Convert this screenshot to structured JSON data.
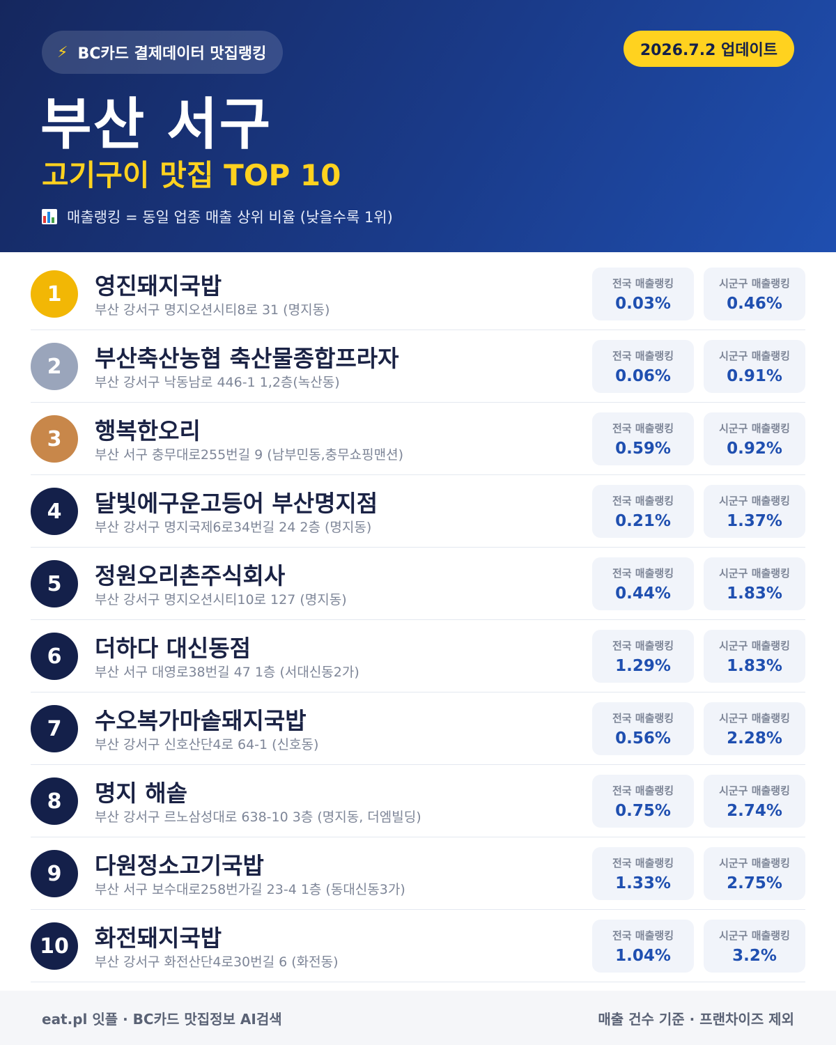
{
  "header": {
    "brand": "BC카드 결제데이터 맛집랭킹",
    "update": "2026.7.2 업데이트",
    "title": "부산 서구",
    "subtitle": "고기구이 맛집 TOP 10",
    "legend": "매출랭킹 = 동일 업종 매출 상위 비율 (낮을수록 1위)",
    "brand_icon": "lightning-bolt-icon",
    "legend_icon": "bar-chart-icon"
  },
  "labels": {
    "national": "전국 매출랭킹",
    "district": "시군구 매출랭킹"
  },
  "colors": {
    "gold": "#F2B705",
    "silver": "#9AA5BB",
    "bronze": "#C8874A",
    "navy": "#14204A",
    "accent_yellow": "#FFD21F",
    "value_blue": "#1F4FB0"
  },
  "restaurants": [
    {
      "rank": "1",
      "name": "영진돼지국밥",
      "address": "부산 강서구 명지오션시티8로 31 (명지동)",
      "national": "0.03%",
      "district": "0.46%"
    },
    {
      "rank": "2",
      "name": "부산축산농협 축산물종합프라자",
      "address": "부산 강서구 낙동남로 446-1 1,2층(녹산동)",
      "national": "0.06%",
      "district": "0.91%"
    },
    {
      "rank": "3",
      "name": "행복한오리",
      "address": "부산 서구 충무대로255번길 9 (남부민동,충무쇼핑맨션)",
      "national": "0.59%",
      "district": "0.92%"
    },
    {
      "rank": "4",
      "name": "달빛에구운고등어 부산명지점",
      "address": "부산 강서구 명지국제6로34번길 24 2층 (명지동)",
      "national": "0.21%",
      "district": "1.37%"
    },
    {
      "rank": "5",
      "name": "정원오리촌주식회사",
      "address": "부산 강서구 명지오션시티10로 127 (명지동)",
      "national": "0.44%",
      "district": "1.83%"
    },
    {
      "rank": "6",
      "name": "더하다 대신동점",
      "address": "부산 서구 대영로38번길 47 1층 (서대신동2가)",
      "national": "1.29%",
      "district": "1.83%"
    },
    {
      "rank": "7",
      "name": "수오복가마솥돼지국밥",
      "address": "부산 강서구 신호산단4로 64-1 (신호동)",
      "national": "0.56%",
      "district": "2.28%"
    },
    {
      "rank": "8",
      "name": "명지 해솥",
      "address": "부산 강서구 르노삼성대로 638-10 3층 (명지동, 더엠빌딩)",
      "national": "0.75%",
      "district": "2.74%"
    },
    {
      "rank": "9",
      "name": "다원정소고기국밥",
      "address": "부산 서구 보수대로258번가길 23-4 1층 (동대신동3가)",
      "national": "1.33%",
      "district": "2.75%"
    },
    {
      "rank": "10",
      "name": "화전돼지국밥",
      "address": "부산 강서구 화전산단4로30번길 6 (화전동)",
      "national": "1.04%",
      "district": "3.2%"
    }
  ],
  "footer": {
    "left": "eat.pl 잇플 · BC카드 맛집정보 AI검색",
    "right": "매출 건수 기준 · 프랜차이즈 제외"
  }
}
